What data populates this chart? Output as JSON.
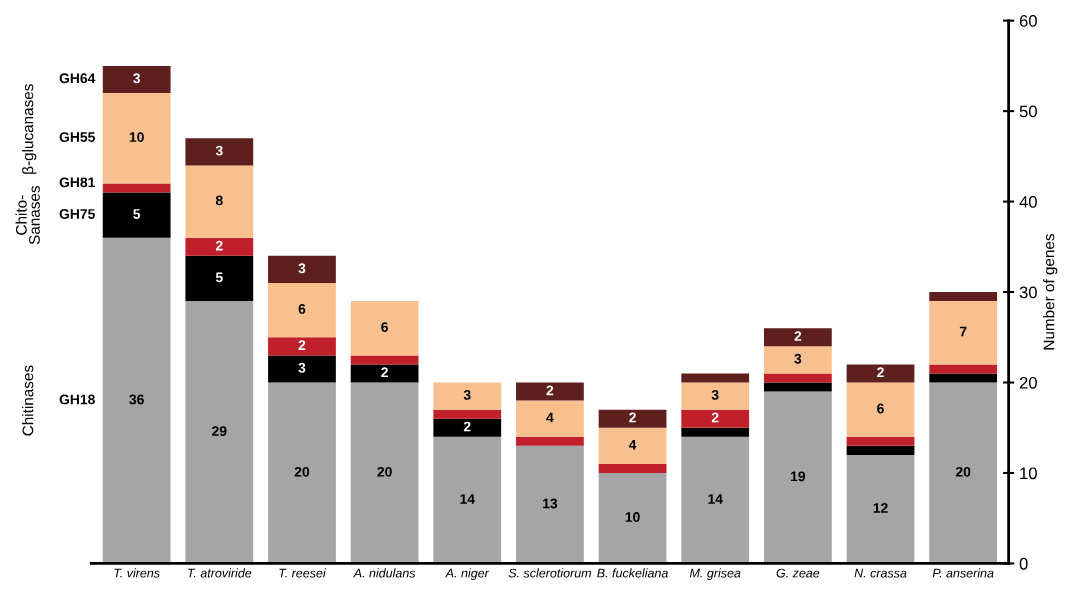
{
  "chart_data": {
    "type": "bar",
    "stacked": true,
    "ylabel": "Number of genes",
    "categories": [
      "T. virens",
      "T. atroviride",
      "T. reesei",
      "A. nidulans",
      "A. niger",
      "S. sclerotiorum",
      "B. fuckeliana",
      "M. grisea",
      "G. zeae",
      "N. crassa",
      "P. anserina"
    ],
    "series": [
      {
        "name": "GH18",
        "color": "#a5a5a5",
        "values": [
          36,
          29,
          20,
          20,
          14,
          13,
          10,
          14,
          19,
          12,
          20
        ],
        "value_labels": [
          "36",
          "29",
          "20",
          "20",
          "14",
          "13",
          "10",
          "14",
          "19",
          "12",
          "20"
        ]
      },
      {
        "name": "GH75",
        "color": "#000000",
        "values": [
          5,
          5,
          3,
          2,
          2,
          0,
          0,
          1,
          1,
          1,
          1
        ],
        "value_labels": [
          "5",
          "5",
          "3",
          "2",
          "2",
          null,
          null,
          null,
          null,
          null,
          null
        ]
      },
      {
        "name": "GH81",
        "color": "#c0202a",
        "values": [
          1,
          2,
          2,
          1,
          1,
          1,
          1,
          2,
          1,
          1,
          1
        ],
        "value_labels": [
          null,
          "2",
          "2",
          null,
          null,
          null,
          null,
          "2",
          null,
          null,
          null
        ]
      },
      {
        "name": "GH55",
        "color": "#f8bf8f",
        "values": [
          10,
          8,
          6,
          6,
          3,
          4,
          4,
          3,
          3,
          6,
          7
        ],
        "value_labels": [
          "10",
          "8",
          "6",
          "6",
          "3",
          "4",
          "4",
          "3",
          "3",
          "6",
          "7"
        ]
      },
      {
        "name": "GH64",
        "color": "#5e1f1f",
        "values": [
          3,
          3,
          3,
          0,
          0,
          2,
          2,
          1,
          2,
          2,
          1
        ],
        "value_labels": [
          "3",
          "3",
          "3",
          null,
          null,
          "2",
          "2",
          null,
          "2",
          "2",
          null
        ]
      }
    ],
    "annotations": [
      "Chitinases",
      "Chito-\nSanases",
      "β-glucanases"
    ],
    "ylim": [
      0,
      60
    ],
    "yticks": [
      0,
      10,
      20,
      30,
      40,
      50,
      60
    ],
    "grid": false,
    "legend": false
  }
}
